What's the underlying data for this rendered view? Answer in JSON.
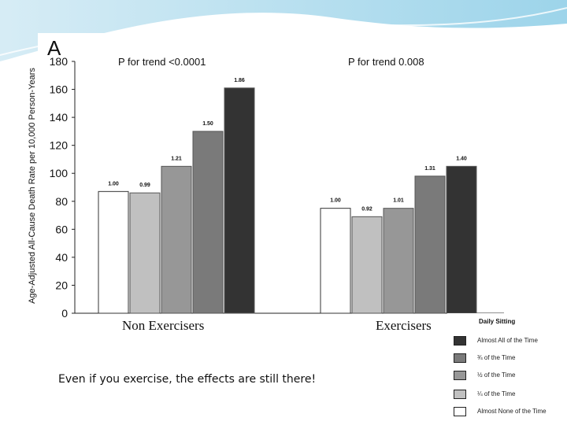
{
  "slide": {
    "caption": "Even if you exercise, the effects are still there!",
    "group_labels": [
      "Non Exercisers",
      "Exercisers"
    ]
  },
  "chart_data": {
    "type": "bar",
    "panel_label": "A",
    "ylabel": "Age-Adjusted All-Cause Death Rate per 10,000 Person-Years",
    "ylim": [
      0,
      180
    ],
    "yticks": [
      0,
      20,
      40,
      60,
      80,
      100,
      120,
      140,
      160,
      180
    ],
    "groups": [
      {
        "name": "Non Exercisers",
        "trend": "P for trend <0.0001",
        "values": [
          87,
          86,
          105,
          130,
          161
        ],
        "labels": [
          "1.00",
          "0.99",
          "1.21",
          "1.50",
          "1.86"
        ]
      },
      {
        "name": "Exercisers",
        "trend": "P for trend 0.008",
        "values": [
          75,
          69,
          75,
          98,
          105
        ],
        "labels": [
          "1.00",
          "0.92",
          "1.01",
          "1.31",
          "1.40"
        ]
      }
    ],
    "series": [
      {
        "name": "Almost None of the Time",
        "color": "#ffffff"
      },
      {
        "name": "¼ of the Time",
        "color": "#c0c0c0"
      },
      {
        "name": "½ of the Time",
        "color": "#979797"
      },
      {
        "name": "¾ of the Time",
        "color": "#7a7a7a"
      },
      {
        "name": "Almost All of the Time",
        "color": "#333333"
      }
    ],
    "legend": {
      "title": "Daily Sitting",
      "items": [
        {
          "label": "Almost All of the Time",
          "color": "#333333"
        },
        {
          "label": "¾ of the Time",
          "color": "#7a7a7a"
        },
        {
          "label": "½ of the Time",
          "color": "#979797"
        },
        {
          "label": "¼ of the Time",
          "color": "#c0c0c0"
        },
        {
          "label": "Almost None of the Time",
          "color": "#ffffff"
        }
      ]
    }
  }
}
